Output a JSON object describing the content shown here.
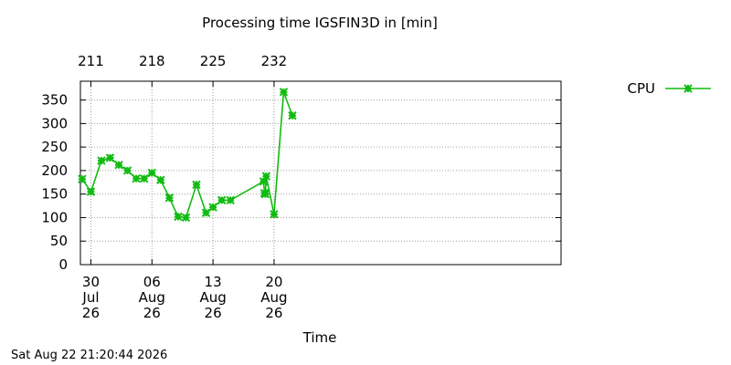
{
  "chart_data": {
    "type": "line",
    "title": "Processing time IGSFIN3D in [min]",
    "xlabel": "Time",
    "ylabel": "",
    "ylim": [
      0,
      390
    ],
    "yticks": [
      0,
      50,
      100,
      150,
      200,
      250,
      300,
      350
    ],
    "xlim_days": [
      28.8,
      83.9
    ],
    "bottom_ticks": [
      {
        "day": 30,
        "lines": [
          "30",
          "Jul",
          "26"
        ]
      },
      {
        "day": 37,
        "lines": [
          "06",
          "Aug",
          "26"
        ]
      },
      {
        "day": 44,
        "lines": [
          "13",
          "Aug",
          "26"
        ]
      },
      {
        "day": 51,
        "lines": [
          "20",
          "Aug",
          "26"
        ]
      }
    ],
    "top_ticks": [
      {
        "day": 30,
        "label": "211"
      },
      {
        "day": 37,
        "label": "218"
      },
      {
        "day": 44,
        "label": "225"
      },
      {
        "day": 51,
        "label": "232"
      }
    ],
    "grid": true,
    "legend_position": "top-right",
    "series": [
      {
        "name": "CPU",
        "color": "#11bb11",
        "marker": "star",
        "points": [
          {
            "x": 29.0,
            "y": 182
          },
          {
            "x": 30.0,
            "y": 155
          },
          {
            "x": 31.2,
            "y": 221
          },
          {
            "x": 32.2,
            "y": 227
          },
          {
            "x": 33.2,
            "y": 212
          },
          {
            "x": 34.2,
            "y": 200
          },
          {
            "x": 35.2,
            "y": 183
          },
          {
            "x": 36.1,
            "y": 183
          },
          {
            "x": 37.0,
            "y": 195
          },
          {
            "x": 38.0,
            "y": 180
          },
          {
            "x": 39.0,
            "y": 142
          },
          {
            "x": 40.0,
            "y": 102
          },
          {
            "x": 40.9,
            "y": 100
          },
          {
            "x": 42.1,
            "y": 170
          },
          {
            "x": 43.2,
            "y": 110
          },
          {
            "x": 44.0,
            "y": 122
          },
          {
            "x": 45.0,
            "y": 137
          },
          {
            "x": 46.0,
            "y": 137
          },
          {
            "x": 49.8,
            "y": 177
          },
          {
            "x": 49.9,
            "y": 152
          },
          {
            "x": 50.0,
            "y": 150
          },
          {
            "x": 50.1,
            "y": 188
          },
          {
            "x": 51.0,
            "y": 107
          },
          {
            "x": 52.1,
            "y": 367
          },
          {
            "x": 53.1,
            "y": 317
          }
        ]
      }
    ],
    "footer_text": "Sat Aug 22 21:20:44 2026"
  }
}
